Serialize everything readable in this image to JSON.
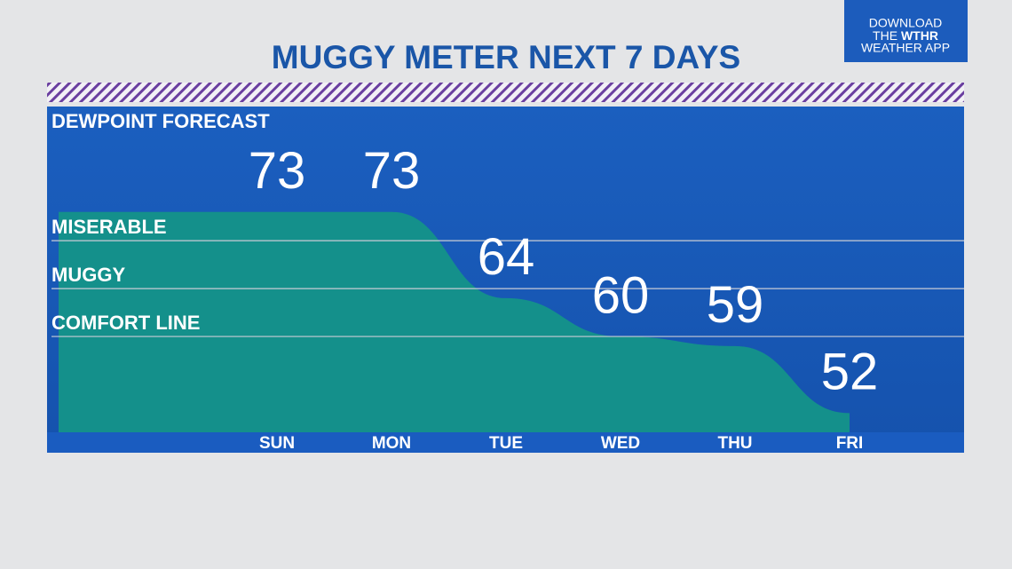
{
  "chart_data": {
    "type": "area",
    "title": "MUGGY METER NEXT 7 DAYS",
    "subtitle": "DEWPOINT FORECAST",
    "categories": [
      "SUN",
      "MON",
      "TUE",
      "WED",
      "THU",
      "FRI"
    ],
    "values": [
      73,
      73,
      64,
      60,
      59,
      52
    ],
    "color": "#14908b",
    "ylim": [
      50,
      84
    ],
    "bands": [
      {
        "label": "MISERABLE",
        "value": 70
      },
      {
        "label": "MUGGY",
        "value": 65
      },
      {
        "label": "COMFORT LINE",
        "value": 60
      }
    ],
    "logo": {
      "line1": "DOWNLOAD",
      "line2a": "THE",
      "line2b": "WTHR",
      "line3": "WEATHER APP"
    }
  }
}
